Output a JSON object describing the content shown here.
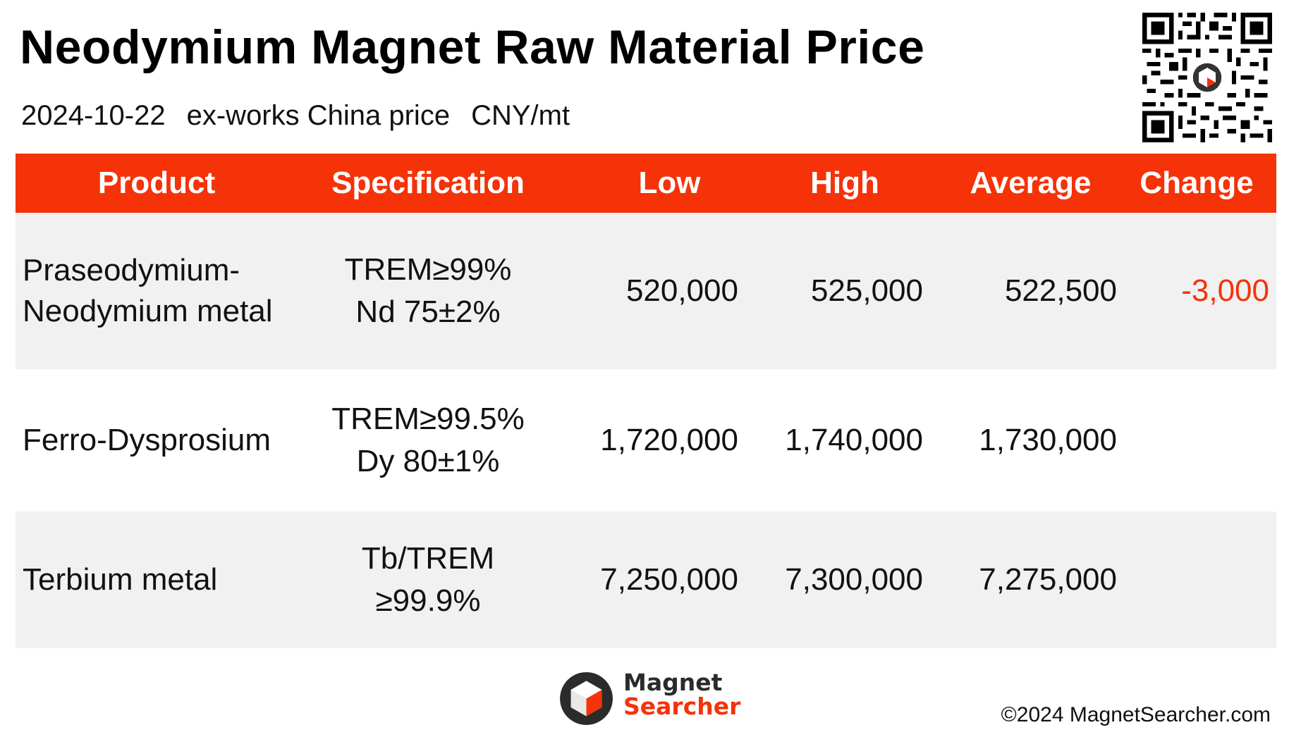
{
  "header": {
    "title": "Neodymium Magnet Raw Material Price",
    "date": "2024-10-22",
    "price_basis": "ex-works China price",
    "unit": "CNY/mt"
  },
  "table": {
    "columns": [
      "Product",
      "Specification",
      "Low",
      "High",
      "Average",
      "Change"
    ],
    "rows": [
      {
        "product_line1": "Praseodymium-",
        "product_line2": "Neodymium metal",
        "spec_line1": "TREM≥99%",
        "spec_line2": "Nd 75±2%",
        "low": "520,000",
        "high": "525,000",
        "average": "522,500",
        "change": "-3,000"
      },
      {
        "product_line1": "Ferro-Dysprosium",
        "product_line2": "",
        "spec_line1": "TREM≥99.5%",
        "spec_line2": "Dy 80±1%",
        "low": "1,720,000",
        "high": "1,740,000",
        "average": "1,730,000",
        "change": ""
      },
      {
        "product_line1": "Terbium metal",
        "product_line2": "",
        "spec_line1": "Tb/TREM",
        "spec_line2": "≥99.9%",
        "low": "7,250,000",
        "high": "7,300,000",
        "average": "7,275,000",
        "change": ""
      }
    ]
  },
  "colors": {
    "accent": "#f53208",
    "row_shade": "#f1f1f1",
    "negative": "#f53208"
  },
  "footer": {
    "logo_line1": "Magnet",
    "logo_line2": "Searcher",
    "copyright": "©2024 MagnetSearcher.com"
  }
}
